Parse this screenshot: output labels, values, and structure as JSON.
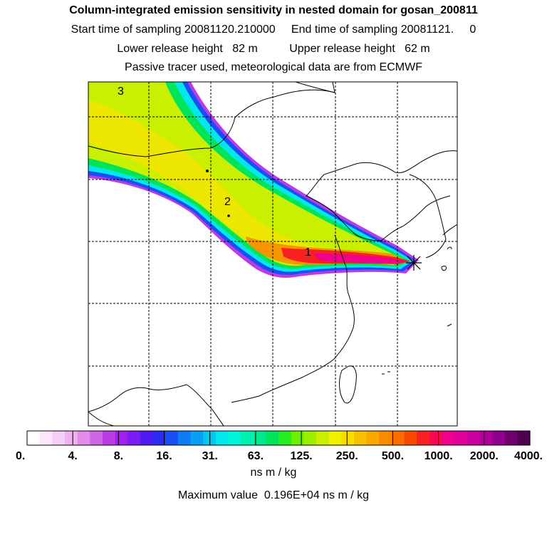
{
  "header": {
    "title": "Column-integrated emission sensitivity in nested domain for gosan_200811",
    "line2": "Start time of sampling 20081120.210000     End time of sampling 20081121.     0",
    "line3": "Lower release height   82 m          Upper release height   62 m",
    "line4": "Passive tracer used, meteorological data are from ECMWF"
  },
  "chart_data": {
    "type": "heatmap",
    "title": "Column-integrated emission sensitivity in nested domain for gosan_200811",
    "colorbar": {
      "tick_labels": [
        "0.",
        "4.",
        "8.",
        "16.",
        "31.",
        "63.",
        "125.",
        "250.",
        "500.",
        "1000.",
        "2000.",
        "4000."
      ],
      "colors": [
        "#ffffff",
        "#fbe6fb",
        "#f6cdf6",
        "#efb2ef",
        "#e08ce8",
        "#cf64e4",
        "#bb3ce6",
        "#a31ef0",
        "#7a1cf4",
        "#4f1af6",
        "#2a2cf6",
        "#1a4ef4",
        "#0e7cf2",
        "#0aa0f2",
        "#04c4f0",
        "#00e8ec",
        "#00f4d8",
        "#00f0b0",
        "#00e890",
        "#00e45a",
        "#24ec20",
        "#6cf000",
        "#9cf000",
        "#c8f000",
        "#f0f000",
        "#f8dc00",
        "#f8c000",
        "#f8a800",
        "#f88c00",
        "#f86c00",
        "#f84800",
        "#f82020",
        "#f80a50",
        "#f0008c",
        "#e0009c",
        "#cc00a0",
        "#b0009c",
        "#900090",
        "#700070",
        "#500050"
      ],
      "unit": "ns m / kg"
    },
    "maximum_text": "Maximum value  0.196E+04 ns m / kg",
    "annotations": [
      "1",
      "2",
      "3"
    ],
    "receptor": "gosan"
  }
}
